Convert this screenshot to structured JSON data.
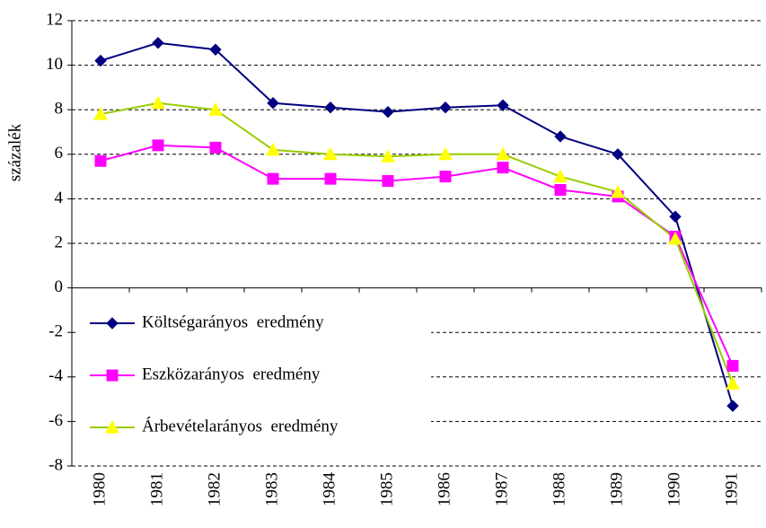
{
  "chart_data": {
    "type": "line",
    "categories": [
      "1980",
      "1981",
      "1982",
      "1983",
      "1984",
      "1985",
      "1986",
      "1987",
      "1988",
      "1989",
      "1990",
      "1991"
    ],
    "y_label": "százalék",
    "series": [
      {
        "name": "Költségarányos  eredmény",
        "color": "#000080",
        "marker": "diamond",
        "marker_color": "#000080",
        "values": [
          10.2,
          11.0,
          10.7,
          8.3,
          8.1,
          7.9,
          8.1,
          8.2,
          6.8,
          6.0,
          3.2,
          -5.3
        ]
      },
      {
        "name": "Eszközarányos  eredmény",
        "color": "#ff00ff",
        "marker": "square",
        "marker_color": "#ff00ff",
        "values": [
          5.7,
          6.4,
          6.3,
          4.9,
          4.9,
          4.8,
          5.0,
          5.4,
          4.4,
          4.1,
          2.3,
          -3.5
        ]
      },
      {
        "name": "Árbevételarányos  eredmény",
        "color": "#99cc00",
        "marker": "triangle",
        "marker_color": "#ffff00",
        "values": [
          7.8,
          8.3,
          8.0,
          6.2,
          6.0,
          5.9,
          6.0,
          6.0,
          5.0,
          4.3,
          2.2,
          -4.3
        ]
      }
    ],
    "ylim": [
      -8,
      12
    ],
    "yticks": [
      -8,
      -6,
      -4,
      -2,
      0,
      2,
      4,
      6,
      8,
      10,
      12
    ],
    "grid": true,
    "legend": "lower left"
  }
}
